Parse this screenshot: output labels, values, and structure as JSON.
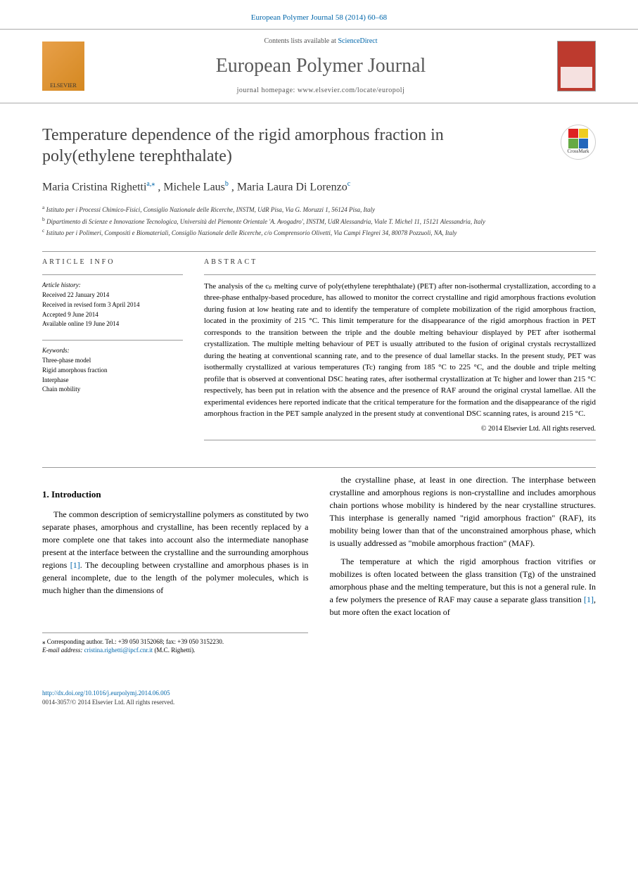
{
  "journal_header": "European Polymer Journal 58 (2014) 60–68",
  "header": {
    "contents_prefix": "Contents lists available at ",
    "contents_link": "ScienceDirect",
    "journal_name": "European Polymer Journal",
    "homepage_prefix": "journal homepage: ",
    "homepage_url": "www.elsevier.com/locate/europolj",
    "elsevier_label": "ELSEVIER"
  },
  "title": "Temperature dependence of the rigid amorphous fraction in poly(ethylene terephthalate)",
  "crossmark_label": "CrossMark",
  "authors": {
    "a1_name": "Maria Cristina Righetti",
    "a1_sup": "a,⁎",
    "a2_name": ", Michele Laus",
    "a2_sup": "b",
    "a3_name": ", Maria Laura Di Lorenzo",
    "a3_sup": "c"
  },
  "affiliations": {
    "a": "Istituto per i Processi Chimico-Fisici, Consiglio Nazionale delle Ricerche, INSTM, UdR Pisa, Via G. Moruzzi 1, 56124 Pisa, Italy",
    "b": "Dipartimento di Scienze e Innovazione Tecnologica, Università del Piemonte Orientale 'A. Avogadro', INSTM, UdR Alessandria, Viale T. Michel 11, 15121 Alessandria, Italy",
    "c": "Istituto per i Polimeri, Compositi e Biomateriali, Consiglio Nazionale delle Ricerche, c/o Comprensorio Olivetti, Via Campi Flegrei 34, 80078 Pozzuoli, NA, Italy"
  },
  "info": {
    "heading": "ARTICLE INFO",
    "history_label": "Article history:",
    "received": "Received 22 January 2014",
    "revised": "Received in revised form 3 April 2014",
    "accepted": "Accepted 9 June 2014",
    "online": "Available online 19 June 2014",
    "keywords_label": "Keywords:",
    "kw1": "Three-phase model",
    "kw2": "Rigid amorphous fraction",
    "kw3": "Interphase",
    "kw4": "Chain mobility"
  },
  "abstract": {
    "heading": "ABSTRACT",
    "text": "The analysis of the cₚ melting curve of poly(ethylene terephthalate) (PET) after non-isothermal crystallization, according to a three-phase enthalpy-based procedure, has allowed to monitor the correct crystalline and rigid amorphous fractions evolution during fusion at low heating rate and to identify the temperature of complete mobilization of the rigid amorphous fraction, located in the proximity of 215 °C. This limit temperature for the disappearance of the rigid amorphous fraction in PET corresponds to the transition between the triple and the double melting behaviour displayed by PET after isothermal crystallization. The multiple melting behaviour of PET is usually attributed to the fusion of original crystals recrystallized during the heating at conventional scanning rate, and to the presence of dual lamellar stacks. In the present study, PET was isothermally crystallized at various temperatures (Tc) ranging from 185 °C to 225 °C, and the double and triple melting profile that is observed at conventional DSC heating rates, after isothermal crystallization at Tc higher and lower than 215 °C respectively, has been put in relation with the absence and the presence of RAF around the original crystal lamellae. All the experimental evidences here reported indicate that the critical temperature for the formation and the disappearance of the rigid amorphous fraction in the PET sample analyzed in the present study at conventional DSC scanning rates, is around 215 °C.",
    "copyright": "© 2014 Elsevier Ltd. All rights reserved."
  },
  "intro": {
    "heading": "1. Introduction",
    "p1a": "The common description of semicrystalline polymers as constituted by two separate phases, amorphous and crystalline, has been recently replaced by a more complete one that takes into account also the intermediate nanophase present at the interface between the crystalline and the surrounding amorphous regions ",
    "ref1": "[1]",
    "p1b": ". The decoupling between crystalline and amorphous phases is in general incomplete, due to the length of the polymer molecules, which is much higher than the dimensions of",
    "p2": "the crystalline phase, at least in one direction. The interphase between crystalline and amorphous regions is non-crystalline and includes amorphous chain portions whose mobility is hindered by the near crystalline structures. This interphase is generally named \"rigid amorphous fraction\" (RAF), its mobility being lower than that of the unconstrained amorphous phase, which is usually addressed as \"mobile amorphous fraction\" (MAF).",
    "p3a": "The temperature at which the rigid amorphous fraction vitrifies or mobilizes is often located between the glass transition (Tg) of the unstrained amorphous phase and the melting temperature, but this is not a general rule. In a few polymers the presence of RAF may cause a separate glass transition ",
    "ref2": "[1]",
    "p3b": ", but more often the exact location of"
  },
  "footnote": {
    "corr": "⁎ Corresponding author. Tel.: +39 050 3152068; fax: +39 050 3152230.",
    "email_label": "E-mail address: ",
    "email": "cristina.righetti@ipcf.cnr.it",
    "email_suffix": " (M.C. Righetti)."
  },
  "footer": {
    "doi": "http://dx.doi.org/10.1016/j.eurpolymj.2014.06.005",
    "issn": "0014-3057/© 2014 Elsevier Ltd. All rights reserved."
  },
  "colors": {
    "link": "#0066aa",
    "journal_gray": "#5a5a5a",
    "cover_bg": "#bd3a2e"
  }
}
